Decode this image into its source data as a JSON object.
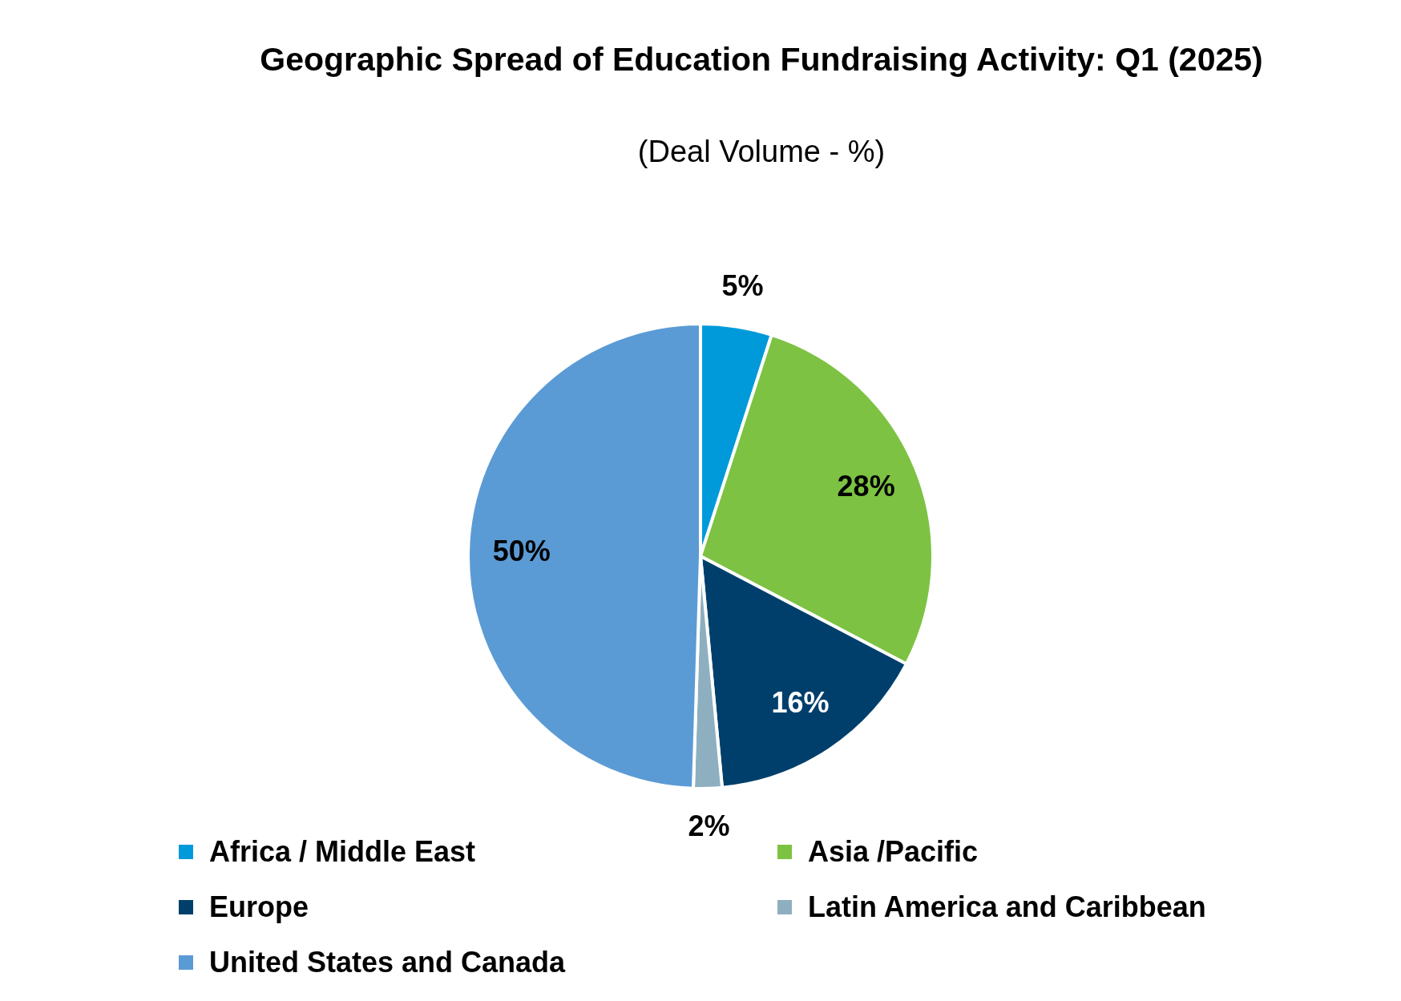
{
  "chart_data": {
    "type": "pie",
    "title": "Geographic Spread of Education Fundraising Activity: Q1 (2025)",
    "subtitle": "(Deal Volume - %)",
    "categories": [
      "Africa / Middle East",
      "Asia /Pacific",
      "Europe",
      "Latin America and Caribbean",
      "United States and Canada"
    ],
    "values": [
      5,
      28,
      16,
      2,
      50
    ],
    "colors": [
      "#009ada",
      "#7dc242",
      "#003f6b",
      "#8eafc0",
      "#5b9bd5"
    ],
    "value_labels": [
      "5%",
      "28%",
      "16%",
      "2%",
      "50%"
    ],
    "legend": "bottom"
  }
}
